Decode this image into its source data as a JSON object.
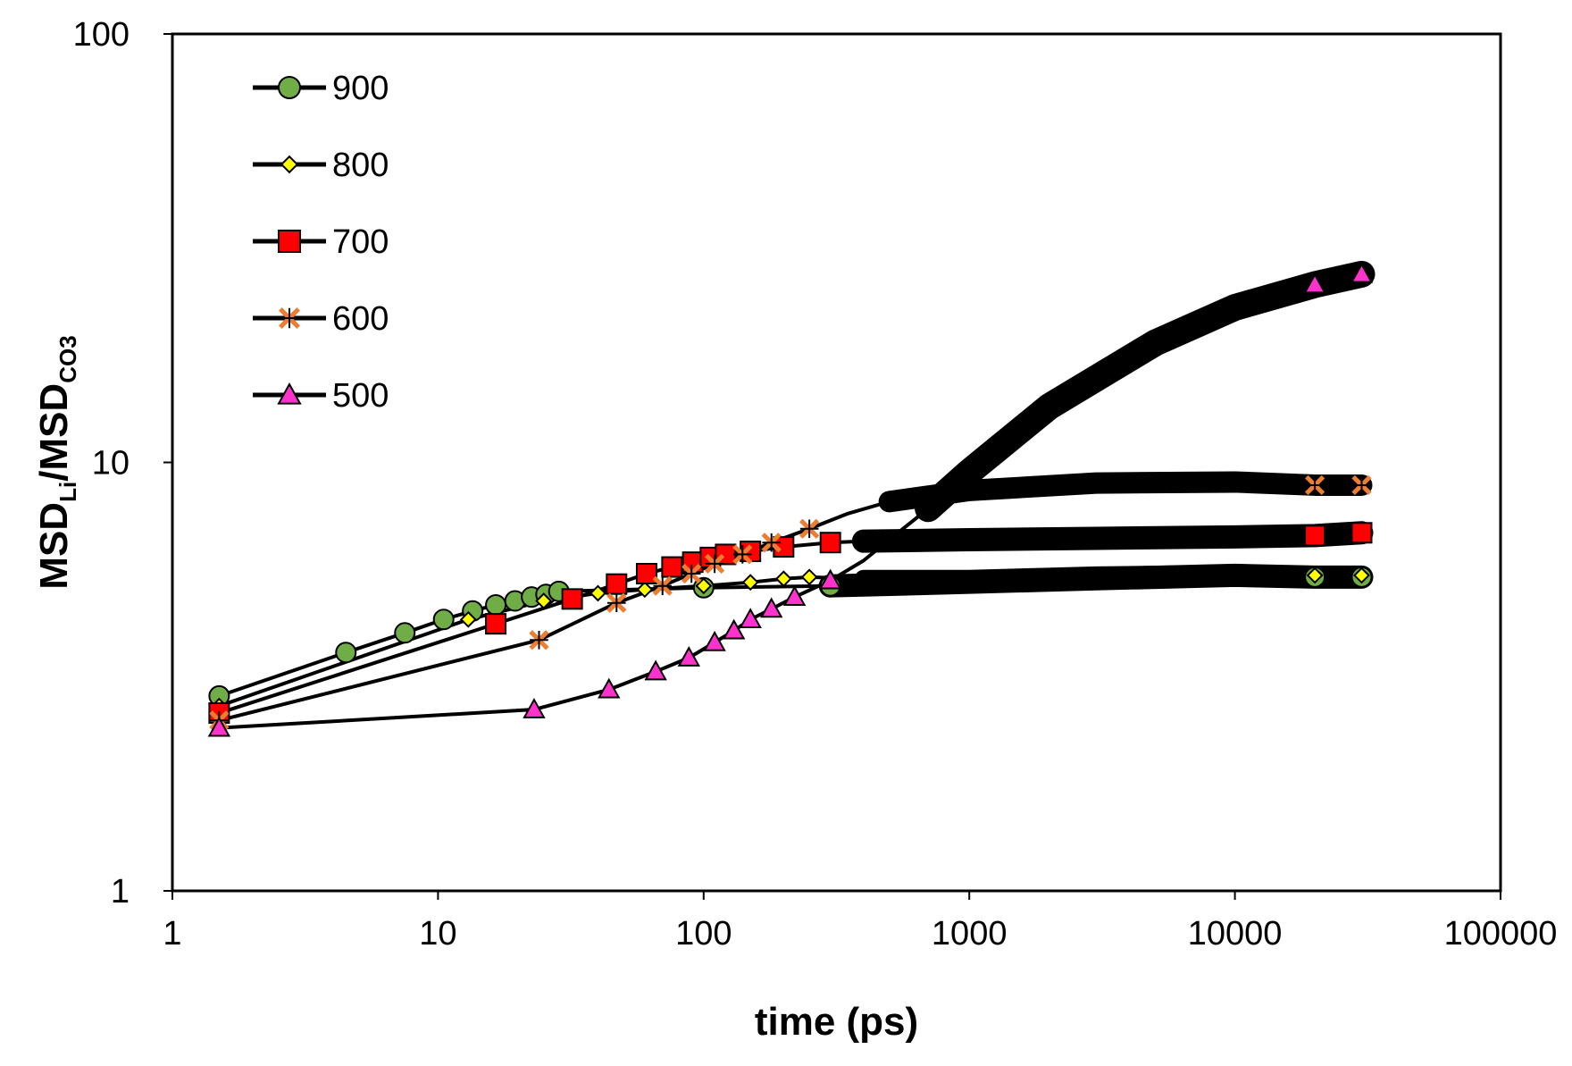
{
  "chart_data": {
    "type": "line",
    "title": "",
    "xlabel": "time (ps)",
    "ylabel_main": "MSD",
    "ylabel_sub1": "Li",
    "ylabel_slash": "/",
    "ylabel_sub2": "CO3",
    "xscale": "log",
    "yscale": "log",
    "xlim": [
      1,
      100000
    ],
    "ylim": [
      1,
      100
    ],
    "x_ticks": [
      "1",
      "10",
      "100",
      "1000",
      "10000",
      "100000"
    ],
    "y_ticks": [
      "1",
      "10",
      "100"
    ],
    "legend_position": "top-left",
    "series": [
      {
        "name": "900",
        "marker": "circle",
        "color": "#70ad47",
        "points": [
          [
            1.5,
            2.85
          ],
          [
            4.5,
            3.6
          ],
          [
            7.5,
            4.0
          ],
          [
            10.5,
            4.3
          ],
          [
            13.5,
            4.5
          ],
          [
            16.5,
            4.65
          ],
          [
            19.5,
            4.75
          ],
          [
            22.5,
            4.85
          ],
          [
            25.5,
            4.92
          ],
          [
            28.5,
            5.0
          ],
          [
            100,
            5.1
          ],
          [
            300,
            5.15
          ],
          [
            1000,
            5.25
          ],
          [
            3000,
            5.35
          ],
          [
            10000,
            5.45
          ],
          [
            20000,
            5.4
          ],
          [
            30000,
            5.4
          ]
        ]
      },
      {
        "name": "800",
        "marker": "diamond",
        "color": "#ffff00",
        "points": [
          [
            1.5,
            2.7
          ],
          [
            13,
            4.3
          ],
          [
            25,
            4.75
          ],
          [
            40,
            4.95
          ],
          [
            60,
            5.05
          ],
          [
            100,
            5.15
          ],
          [
            150,
            5.25
          ],
          [
            200,
            5.35
          ],
          [
            250,
            5.4
          ],
          [
            400,
            5.35
          ],
          [
            1000,
            5.35
          ],
          [
            3000,
            5.45
          ],
          [
            10000,
            5.5
          ],
          [
            20000,
            5.45
          ],
          [
            30000,
            5.45
          ]
        ]
      },
      {
        "name": "700",
        "marker": "square",
        "color": "#ff0000",
        "points": [
          [
            1.5,
            2.6
          ],
          [
            16.5,
            4.2
          ],
          [
            32,
            4.8
          ],
          [
            47,
            5.2
          ],
          [
            61,
            5.5
          ],
          [
            76,
            5.7
          ],
          [
            91,
            5.85
          ],
          [
            106,
            6.0
          ],
          [
            121,
            6.1
          ],
          [
            150,
            6.2
          ],
          [
            200,
            6.35
          ],
          [
            300,
            6.5
          ],
          [
            400,
            6.55
          ],
          [
            1000,
            6.6
          ],
          [
            3000,
            6.65
          ],
          [
            10000,
            6.7
          ],
          [
            20000,
            6.75
          ],
          [
            30000,
            6.85
          ]
        ]
      },
      {
        "name": "600",
        "marker": "star",
        "color": "#ed7d31",
        "points": [
          [
            1.5,
            2.5
          ],
          [
            24,
            3.85
          ],
          [
            47,
            4.7
          ],
          [
            70,
            5.15
          ],
          [
            90,
            5.5
          ],
          [
            110,
            5.8
          ],
          [
            140,
            6.1
          ],
          [
            180,
            6.5
          ],
          [
            250,
            7.0
          ],
          [
            350,
            7.6
          ],
          [
            500,
            8.1
          ],
          [
            1000,
            8.6
          ],
          [
            3000,
            8.95
          ],
          [
            10000,
            9.0
          ],
          [
            20000,
            8.85
          ],
          [
            30000,
            8.85
          ]
        ]
      },
      {
        "name": "500",
        "marker": "triangle",
        "color": "#ff33cc",
        "points": [
          [
            1.5,
            2.4
          ],
          [
            23,
            2.65
          ],
          [
            44,
            2.95
          ],
          [
            66,
            3.25
          ],
          [
            88,
            3.5
          ],
          [
            110,
            3.8
          ],
          [
            130,
            4.05
          ],
          [
            150,
            4.3
          ],
          [
            180,
            4.55
          ],
          [
            220,
            4.85
          ],
          [
            300,
            5.3
          ],
          [
            400,
            5.9
          ],
          [
            500,
            6.6
          ],
          [
            700,
            7.8
          ],
          [
            1000,
            9.5
          ],
          [
            2000,
            13.5
          ],
          [
            5000,
            19.0
          ],
          [
            10000,
            23.0
          ],
          [
            20000,
            26.0
          ],
          [
            30000,
            27.5
          ]
        ]
      }
    ]
  }
}
